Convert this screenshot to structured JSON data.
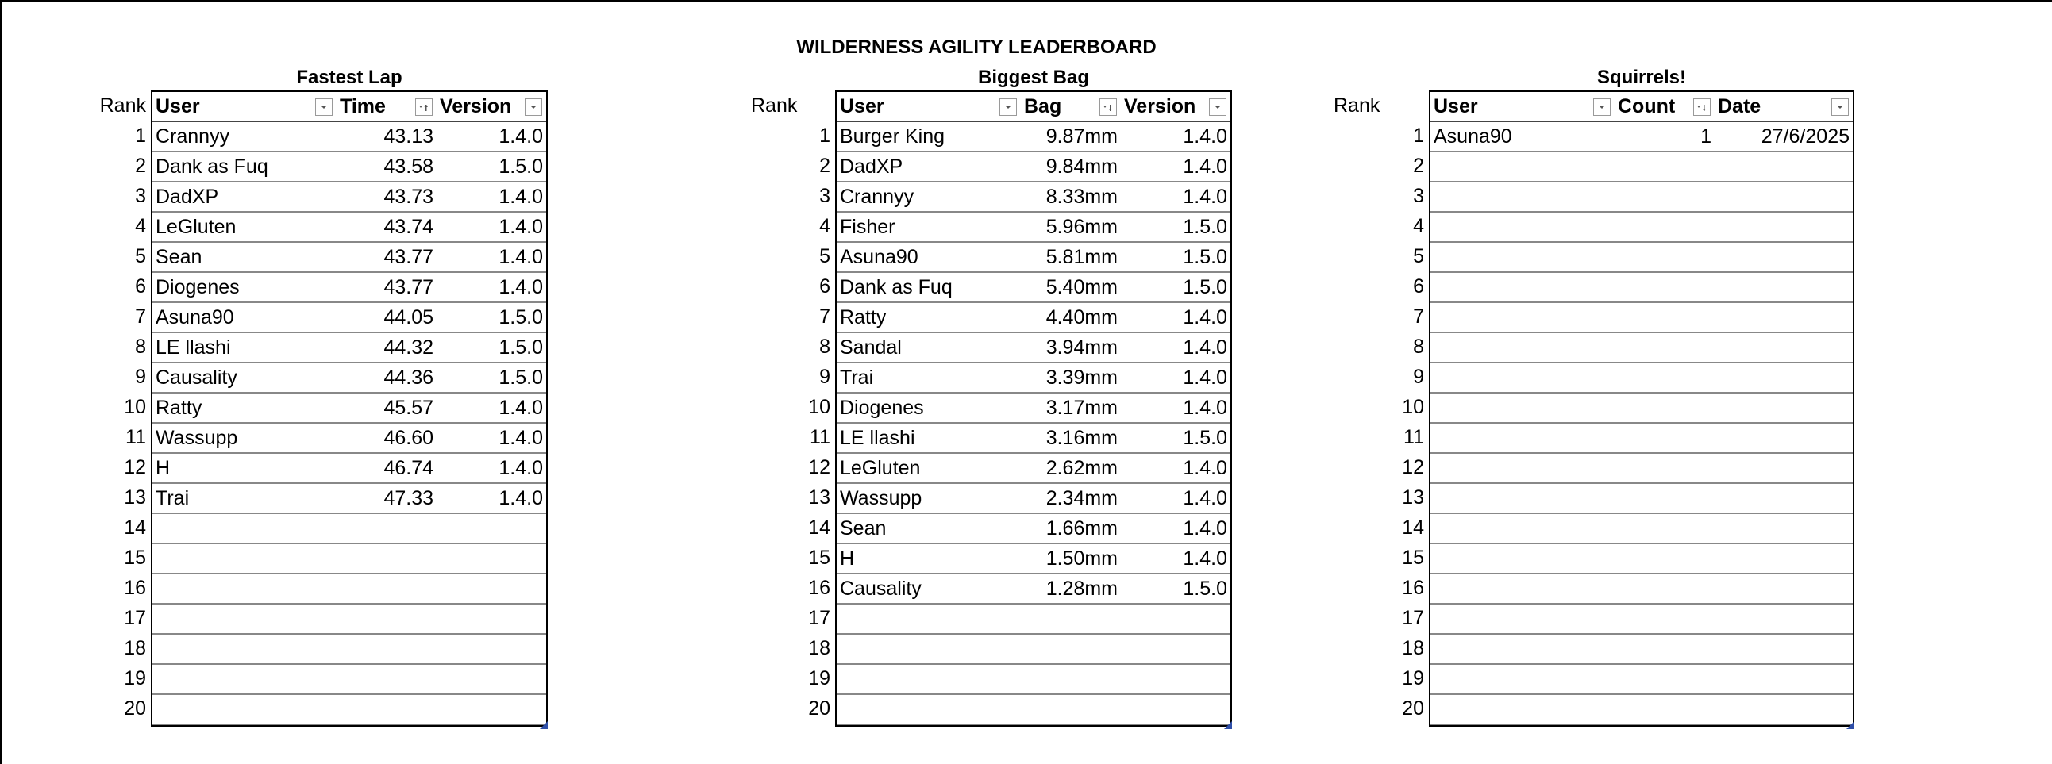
{
  "title": "WILDERNESS AGILITY LEADERBOARD",
  "rank_label": "Rank",
  "ranks": [
    "1",
    "2",
    "3",
    "4",
    "5",
    "6",
    "7",
    "8",
    "9",
    "10",
    "11",
    "12",
    "13",
    "14",
    "15",
    "16",
    "17",
    "18",
    "19",
    "20"
  ],
  "fastest_lap": {
    "title": "Fastest Lap",
    "headers": [
      "User",
      "Time",
      "Version"
    ],
    "rows": [
      [
        "Crannyy",
        "43.13",
        "1.4.0"
      ],
      [
        "Dank as Fuq",
        "43.58",
        "1.5.0"
      ],
      [
        "DadXP",
        "43.73",
        "1.4.0"
      ],
      [
        "LeGluten",
        "43.74",
        "1.4.0"
      ],
      [
        "Sean",
        "43.77",
        "1.4.0"
      ],
      [
        "Diogenes",
        "43.77",
        "1.4.0"
      ],
      [
        "Asuna90",
        "44.05",
        "1.5.0"
      ],
      [
        "LE llashi",
        "44.32",
        "1.5.0"
      ],
      [
        "Causality",
        "44.36",
        "1.5.0"
      ],
      [
        "Ratty",
        "45.57",
        "1.4.0"
      ],
      [
        "Wassupp",
        "46.60",
        "1.4.0"
      ],
      [
        "H",
        "46.74",
        "1.4.0"
      ],
      [
        "Trai",
        "47.33",
        "1.4.0"
      ],
      [
        "",
        "",
        ""
      ],
      [
        "",
        "",
        ""
      ],
      [
        "",
        "",
        ""
      ],
      [
        "",
        "",
        ""
      ],
      [
        "",
        "",
        ""
      ],
      [
        "",
        "",
        ""
      ],
      [
        "",
        "",
        ""
      ]
    ]
  },
  "biggest_bag": {
    "title": "Biggest Bag",
    "headers": [
      "User",
      "Bag",
      "Version"
    ],
    "rows": [
      [
        "Burger King",
        "9.87mm",
        "1.4.0"
      ],
      [
        "DadXP",
        "9.84mm",
        "1.4.0"
      ],
      [
        "Crannyy",
        "8.33mm",
        "1.4.0"
      ],
      [
        "Fisher",
        "5.96mm",
        "1.5.0"
      ],
      [
        "Asuna90",
        "5.81mm",
        "1.5.0"
      ],
      [
        "Dank as Fuq",
        "5.40mm",
        "1.5.0"
      ],
      [
        "Ratty",
        "4.40mm",
        "1.4.0"
      ],
      [
        "Sandal",
        "3.94mm",
        "1.4.0"
      ],
      [
        "Trai",
        "3.39mm",
        "1.4.0"
      ],
      [
        "Diogenes",
        "3.17mm",
        "1.4.0"
      ],
      [
        "LE llashi",
        "3.16mm",
        "1.5.0"
      ],
      [
        "LeGluten",
        "2.62mm",
        "1.4.0"
      ],
      [
        "Wassupp",
        "2.34mm",
        "1.4.0"
      ],
      [
        "Sean",
        "1.66mm",
        "1.4.0"
      ],
      [
        "H",
        "1.50mm",
        "1.4.0"
      ],
      [
        "Causality",
        "1.28mm",
        "1.5.0"
      ],
      [
        "",
        "",
        ""
      ],
      [
        "",
        "",
        ""
      ],
      [
        "",
        "",
        ""
      ],
      [
        "",
        "",
        ""
      ]
    ]
  },
  "squirrels": {
    "title": "Squirrels!",
    "headers": [
      "User",
      "Count",
      "Date"
    ],
    "rows": [
      [
        "Asuna90",
        "1",
        "27/6/2025"
      ],
      [
        "",
        "",
        ""
      ],
      [
        "",
        "",
        ""
      ],
      [
        "",
        "",
        ""
      ],
      [
        "",
        "",
        ""
      ],
      [
        "",
        "",
        ""
      ],
      [
        "",
        "",
        ""
      ],
      [
        "",
        "",
        ""
      ],
      [
        "",
        "",
        ""
      ],
      [
        "",
        "",
        ""
      ],
      [
        "",
        "",
        ""
      ],
      [
        "",
        "",
        ""
      ],
      [
        "",
        "",
        ""
      ],
      [
        "",
        "",
        ""
      ],
      [
        "",
        "",
        ""
      ],
      [
        "",
        "",
        ""
      ],
      [
        "",
        "",
        ""
      ],
      [
        "",
        "",
        ""
      ],
      [
        "",
        "",
        ""
      ],
      [
        "",
        "",
        ""
      ]
    ]
  },
  "colors": {
    "resize_handle": "#2f4fa8",
    "grid_line": "#888888"
  },
  "icons": {
    "filter": "filter-dropdown-icon",
    "sorted": "sort-descending-icon",
    "sorted_asc": "sort-ascending-icon"
  }
}
